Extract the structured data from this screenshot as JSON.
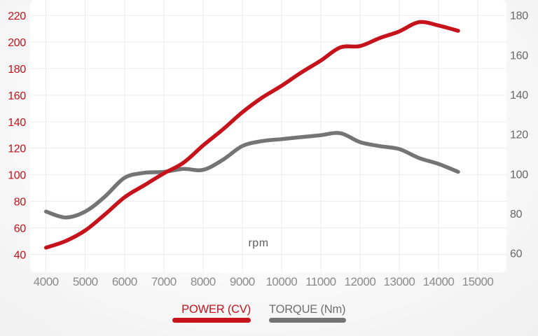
{
  "chart_data": {
    "type": "line",
    "xlabel": "rpm",
    "x": [
      4000,
      4500,
      5000,
      5500,
      6000,
      6500,
      7000,
      7500,
      8000,
      8500,
      9000,
      9500,
      10000,
      10500,
      11000,
      11500,
      12000,
      12500,
      13000,
      13500,
      14000,
      14500
    ],
    "series": [
      {
        "name": "POWER (CV)",
        "axis": "left",
        "color": "#c5121b",
        "values": [
          45,
          50,
          58,
          70,
          83,
          92,
          101,
          109,
          122,
          134,
          147,
          158,
          167,
          177,
          186,
          196,
          197,
          203,
          208,
          215,
          212.5,
          208.5
        ]
      },
      {
        "name": "TORQUE (Nm)",
        "axis": "right",
        "color": "#747474",
        "values": [
          81,
          78,
          81,
          88.5,
          98,
          100.5,
          101,
          102.5,
          102,
          107,
          114,
          116.5,
          117.5,
          118.5,
          119.5,
          120.5,
          116,
          114,
          112.5,
          108,
          105,
          101
        ]
      }
    ],
    "axes": {
      "x": {
        "min": 4000,
        "max": 15000,
        "ticks": [
          4000,
          5000,
          6000,
          7000,
          8000,
          9000,
          10000,
          11000,
          12000,
          13000,
          14000,
          15000
        ],
        "tick_color": "#8a8a8a"
      },
      "left": {
        "min": 40,
        "max": 220,
        "ticks": [
          220,
          200,
          180,
          160,
          140,
          120,
          100,
          80,
          60,
          40
        ],
        "tick_color": "#c5121b"
      },
      "right": {
        "min": 60,
        "max": 180,
        "ticks": [
          180,
          160,
          140,
          120,
          100,
          80,
          60
        ],
        "tick_color": "#676767"
      }
    },
    "grid": true,
    "legend_position": "bottom",
    "colors": {
      "plot_background": "#ffffff",
      "gridline": "#ececec",
      "x_axis_title": "#5e5e5e"
    }
  }
}
